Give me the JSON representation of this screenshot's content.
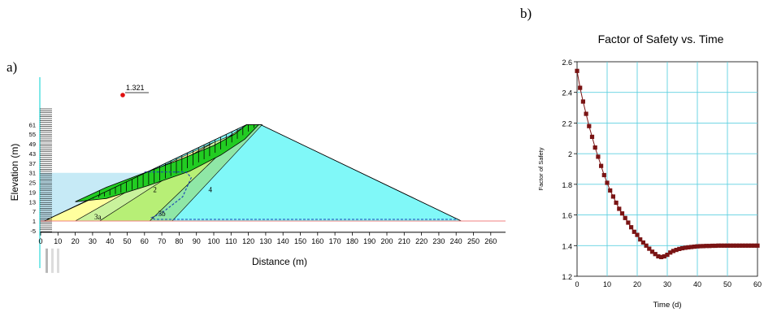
{
  "panels": {
    "a": "a)",
    "b": "b)"
  },
  "colors": {
    "water": "#c6eaf6",
    "zone_1": "#ffff9e",
    "zone_2": "#b7ef76",
    "zone_3a": "#c9f29c",
    "zone_3b": "#8fe7a6",
    "zone_4": "#80f8f8",
    "slip_mass": "#22cc22",
    "series": "#7a1414",
    "grid": "#5fd0e0",
    "ground_line": "#f08080"
  },
  "chart_data": [
    {
      "type": "diagram",
      "panel": "a)",
      "xlabel": "Distance (m)",
      "ylabel": "Elevation (m)",
      "x_ticks": [
        0,
        10,
        20,
        30,
        40,
        50,
        60,
        70,
        80,
        90,
        100,
        110,
        120,
        130,
        140,
        150,
        160,
        170,
        180,
        190,
        200,
        210,
        220,
        230,
        240,
        250,
        260
      ],
      "y_ticks": [
        -5,
        1,
        7,
        13,
        19,
        25,
        31,
        37,
        43,
        49,
        55,
        61
      ],
      "xlim": [
        0,
        265
      ],
      "ylim": [
        -5,
        64
      ],
      "factor_of_safety_label": "1.321",
      "material_labels": [
        "1",
        "2",
        "3a",
        "3b",
        "4"
      ],
      "dam_crest": {
        "x": [
          119,
          127
        ],
        "elevation": 61
      },
      "dam_toes": {
        "upstream_x": 2,
        "downstream_x": 243,
        "elevation": 1
      },
      "reservoir_level": 31
    },
    {
      "type": "line",
      "panel": "b)",
      "title": "Factor of Safety vs. Time",
      "xlabel": "Time (d)",
      "ylabel": "Factor of Safety",
      "xlim": [
        0,
        60
      ],
      "ylim": [
        1.2,
        2.6
      ],
      "x_ticks": [
        0,
        10,
        20,
        30,
        40,
        50,
        60
      ],
      "y_ticks": [
        1.2,
        1.4,
        1.6,
        1.8,
        2,
        2.2,
        2.4,
        2.6
      ],
      "grid": true,
      "series": [
        {
          "marker": "square",
          "x": [
            0,
            1,
            2,
            3,
            4,
            5,
            6,
            7,
            8,
            9,
            10,
            11,
            12,
            13,
            14,
            15,
            16,
            17,
            18,
            19,
            20,
            21,
            22,
            23,
            24,
            25,
            26,
            27,
            28,
            29,
            30,
            31,
            32,
            33,
            34,
            35,
            36,
            37,
            38,
            39,
            40,
            41,
            42,
            43,
            44,
            45,
            46,
            47,
            48,
            49,
            50,
            51,
            52,
            53,
            54,
            55,
            56,
            57,
            58,
            59,
            60
          ],
          "values": [
            2.54,
            2.43,
            2.34,
            2.26,
            2.18,
            2.11,
            2.04,
            1.98,
            1.92,
            1.86,
            1.81,
            1.76,
            1.72,
            1.68,
            1.64,
            1.61,
            1.58,
            1.55,
            1.52,
            1.49,
            1.47,
            1.44,
            1.42,
            1.4,
            1.38,
            1.36,
            1.345,
            1.33,
            1.325,
            1.33,
            1.34,
            1.355,
            1.365,
            1.372,
            1.378,
            1.383,
            1.386,
            1.389,
            1.391,
            1.393,
            1.395,
            1.396,
            1.397,
            1.398,
            1.398,
            1.399,
            1.399,
            1.4,
            1.4,
            1.4,
            1.4,
            1.4,
            1.4,
            1.4,
            1.4,
            1.4,
            1.4,
            1.4,
            1.4,
            1.4,
            1.4
          ]
        }
      ]
    }
  ]
}
